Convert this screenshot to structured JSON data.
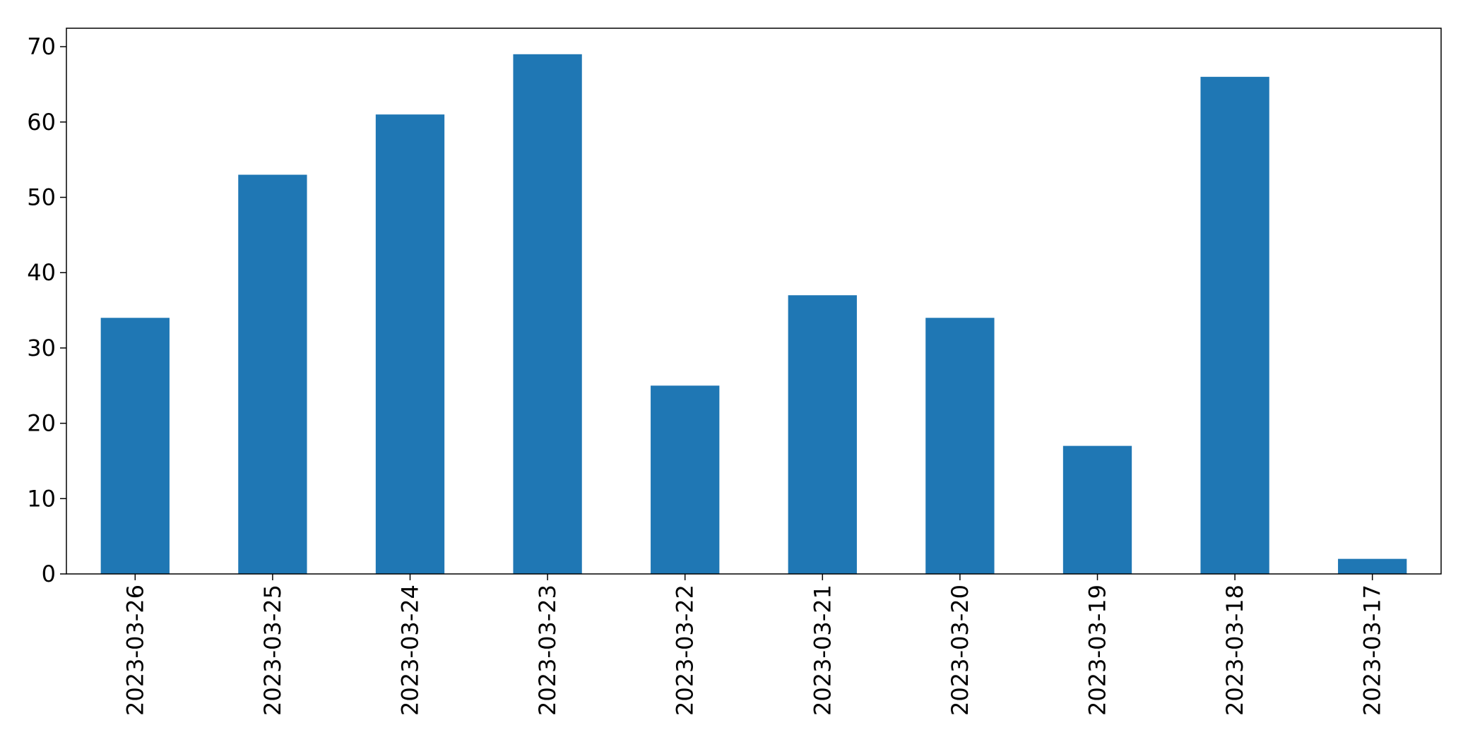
{
  "chart_data": {
    "type": "bar",
    "categories": [
      "2023-03-26",
      "2023-03-25",
      "2023-03-24",
      "2023-03-23",
      "2023-03-22",
      "2023-03-21",
      "2023-03-20",
      "2023-03-19",
      "2023-03-18",
      "2023-03-17"
    ],
    "values": [
      34,
      53,
      61,
      69,
      25,
      37,
      34,
      17,
      66,
      2
    ],
    "title": "",
    "xlabel": "",
    "ylabel": "",
    "ylim": [
      0,
      72.45
    ],
    "yticks": [
      0,
      10,
      20,
      30,
      40,
      50,
      60,
      70
    ],
    "grid": false,
    "legend": "none",
    "bar_color": "#1f77b4",
    "x_tick_rotation": "vertical"
  }
}
